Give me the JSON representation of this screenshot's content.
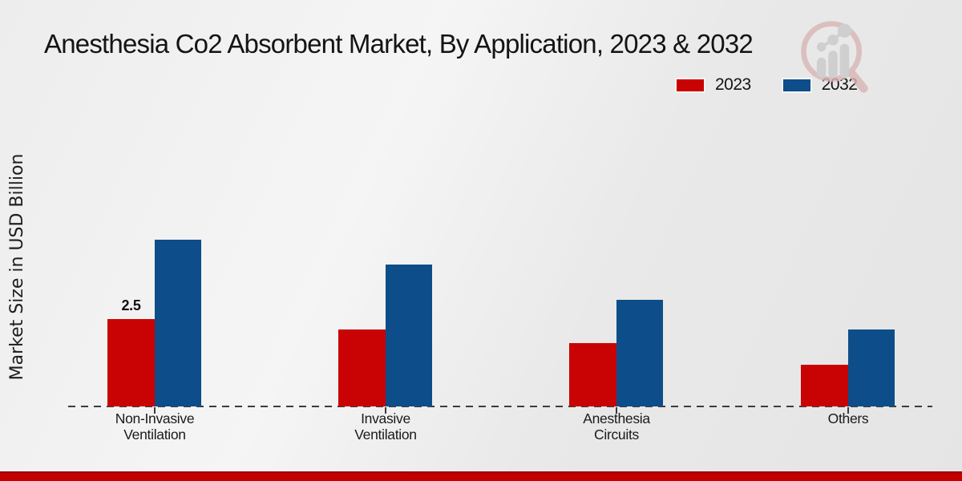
{
  "chart_data": {
    "type": "bar",
    "title": "Anesthesia Co2 Absorbent Market, By Application, 2023 & 2032",
    "xlabel": "",
    "ylabel": "Market Size in USD Billion",
    "categories": [
      "Non-Invasive\nVentilation",
      "Invasive\nVentilation",
      "Anesthesia\nCircuits",
      "Others"
    ],
    "series": [
      {
        "name": "2023",
        "color": "#c90303",
        "values": [
          2.5,
          2.2,
          1.8,
          1.2
        ]
      },
      {
        "name": "2032",
        "color": "#0d4d89",
        "values": [
          4.75,
          4.05,
          3.05,
          2.2
        ]
      }
    ],
    "annotations": [
      {
        "series": "2023",
        "category_index": 0,
        "text": "2.5"
      }
    ],
    "ylim": [
      0,
      5
    ],
    "grid": false,
    "legend_position": "top-right",
    "baseline_style": "dashed",
    "y_axis_ticks_visible": false
  },
  "logo": {
    "icon": "magnifier-bar-chart-logo-icon"
  },
  "footer": {
    "bar_color": "#c10000",
    "bar_edge_color": "#9b0000"
  }
}
